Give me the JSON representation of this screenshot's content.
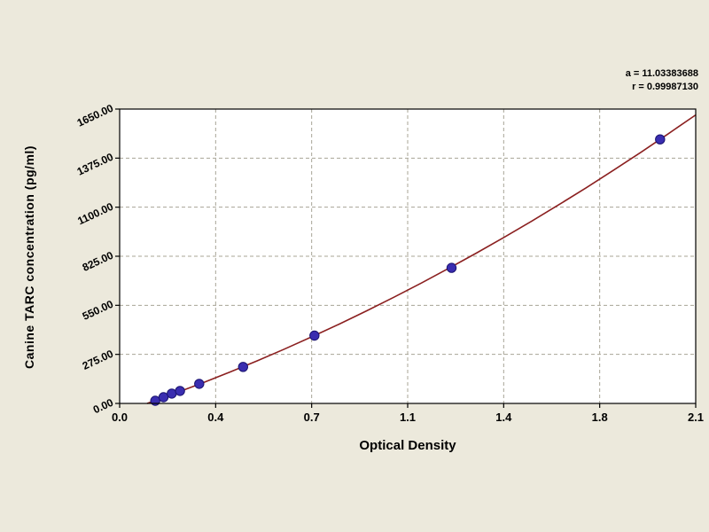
{
  "annotation": {
    "line1": "a = 11.03383688",
    "line2": "r = 0.99987130"
  },
  "chart_data": {
    "type": "scatter",
    "title": "",
    "xlabel": "Optical Density",
    "ylabel": "Canine TARC concentration (pg/ml)",
    "xlim": [
      0,
      2.1
    ],
    "ylim": [
      0,
      1650
    ],
    "x_tick_labels": [
      "0.0",
      "0.4",
      "0.7",
      "1.1",
      "1.4",
      "1.8",
      "2.1"
    ],
    "y_tick_labels": [
      "0.00",
      "275.00",
      "550.00",
      "825.00",
      "1100.00",
      "1375.00",
      "1650.00"
    ],
    "grid": "dashed",
    "legend": "none",
    "points": [
      [
        0.13,
        15
      ],
      [
        0.16,
        35
      ],
      [
        0.19,
        55
      ],
      [
        0.22,
        70
      ],
      [
        0.29,
        110
      ],
      [
        0.45,
        205
      ],
      [
        0.71,
        380
      ],
      [
        1.21,
        760
      ],
      [
        1.97,
        1480
      ]
    ],
    "curve_points": [
      [
        0.1,
        0
      ],
      [
        0.2,
        55.5
      ],
      [
        0.3,
        113.6
      ],
      [
        0.4,
        174.5
      ],
      [
        0.5,
        238.0
      ],
      [
        0.6,
        304.2
      ],
      [
        0.7,
        373.0
      ],
      [
        0.8,
        444.5
      ],
      [
        0.9,
        518.7
      ],
      [
        1.0,
        595.6
      ],
      [
        1.1,
        675.1
      ],
      [
        1.2,
        757.3
      ],
      [
        1.3,
        842.2
      ],
      [
        1.4,
        929.7
      ],
      [
        1.5,
        1020.0
      ],
      [
        1.6,
        1112.9
      ],
      [
        1.7,
        1208.4
      ],
      [
        1.8,
        1306.7
      ],
      [
        1.9,
        1407.6
      ],
      [
        2.0,
        1511.2
      ],
      [
        2.1,
        1617.4
      ]
    ],
    "colors": {
      "point_fill": "#3a2db0",
      "point_stroke": "#1a1370",
      "curve": "#8b2020",
      "grid": "#a8a496",
      "plot_background": "#ffffff",
      "page_background": "#ece9dc",
      "axis": "#000000"
    }
  }
}
